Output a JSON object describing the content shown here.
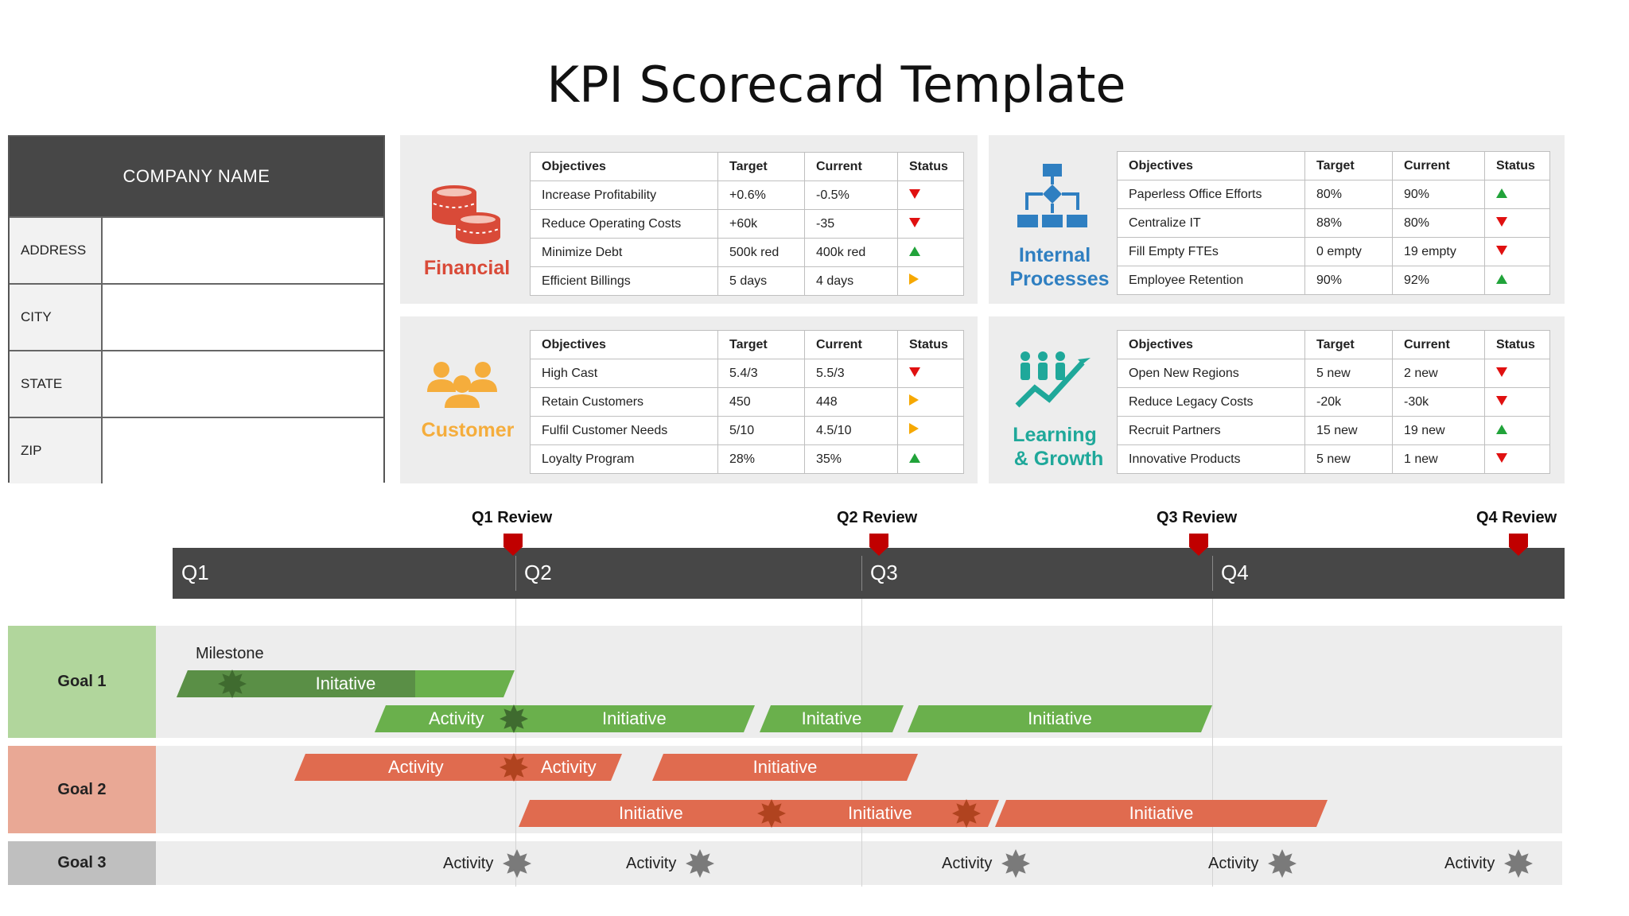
{
  "title": "KPI Scorecard Template",
  "company": {
    "header": "COMPANY NAME",
    "rows": [
      {
        "label": "ADDRESS",
        "value": ""
      },
      {
        "label": "CITY",
        "value": ""
      },
      {
        "label": "STATE",
        "value": ""
      },
      {
        "label": "ZIP",
        "value": ""
      }
    ]
  },
  "table_headers": {
    "objectives": "Objectives",
    "target": "Target",
    "current": "Current",
    "status": "Status"
  },
  "panels": {
    "financial": {
      "label": "Financial",
      "icon": "coins-icon",
      "color": "#d94a38",
      "rows": [
        {
          "objective": "Increase Profitability",
          "target": "+0.6%",
          "current": "-0.5%",
          "status": "down"
        },
        {
          "objective": "Reduce Operating Costs",
          "target": "+60k",
          "current": "-35",
          "status": "down"
        },
        {
          "objective": "Minimize Debt",
          "target": "500k red",
          "current": "400k red",
          "status": "up"
        },
        {
          "objective": "Efficient Billings",
          "target": "5 days",
          "current": "4 days",
          "status": "right"
        }
      ]
    },
    "internal": {
      "label_line1": "Internal",
      "label_line2": "Processes",
      "icon": "process-flow-icon",
      "color": "#2f7fc1",
      "rows": [
        {
          "objective": "Paperless Office Efforts",
          "target": "80%",
          "current": "90%",
          "status": "up"
        },
        {
          "objective": "Centralize IT",
          "target": "88%",
          "current": "80%",
          "status": "down"
        },
        {
          "objective": "Fill Empty FTEs",
          "target": "0 empty",
          "current": "19 empty",
          "status": "down"
        },
        {
          "objective": "Employee Retention",
          "target": "90%",
          "current": "92%",
          "status": "up"
        }
      ]
    },
    "customer": {
      "label": "Customer",
      "icon": "people-icon",
      "color": "#f5ad3c",
      "rows": [
        {
          "objective": "High Cast",
          "target": "5.4/3",
          "current": "5.5/3",
          "status": "down"
        },
        {
          "objective": "Retain Customers",
          "target": "450",
          "current": "448",
          "status": "right"
        },
        {
          "objective": "Fulfil Customer Needs",
          "target": "5/10",
          "current": "4.5/10",
          "status": "right"
        },
        {
          "objective": "Loyalty Program",
          "target": "28%",
          "current": "35%",
          "status": "up"
        }
      ]
    },
    "learning": {
      "label_line1": "Learning",
      "label_line2": "& Growth",
      "icon": "growth-team-icon",
      "color": "#1fa89a",
      "rows": [
        {
          "objective": "Open New Regions",
          "target": "5 new",
          "current": "2 new",
          "status": "down"
        },
        {
          "objective": "Reduce Legacy Costs",
          "target": "-20k",
          "current": "-30k",
          "status": "down"
        },
        {
          "objective": "Recruit Partners",
          "target": "15 new",
          "current": "19 new",
          "status": "up"
        },
        {
          "objective": "Innovative Products",
          "target": "5 new",
          "current": "1 new",
          "status": "down"
        }
      ]
    }
  },
  "timeline": {
    "reviews": [
      "Q1 Review",
      "Q2 Review",
      "Q3 Review",
      "Q4 Review"
    ],
    "quarters": [
      "Q1",
      "Q2",
      "Q3",
      "Q4"
    ],
    "goals": [
      "Goal 1",
      "Goal 2",
      "Goal 3"
    ],
    "goal_colors": {
      "goal1": "#b1d69c",
      "goal2": "#e9a895",
      "goal3": "#bfbfbf"
    },
    "milestone_label": "Milestone",
    "goal1": {
      "bar1": "Initative",
      "bar2_activity": "Activity",
      "bar2_initiative": "Initiative",
      "bar3": "Initative",
      "bar4": "Initiative"
    },
    "goal2": {
      "bar1_a": "Activity",
      "bar1_b": "Activity",
      "bar2": "Initiative",
      "bar3_a": "Initiative",
      "bar3_b": "Initiative",
      "bar3_c": "Initiative"
    },
    "goal3": {
      "activities": [
        "Activity",
        "Activity",
        "Activity",
        "Activity",
        "Activity"
      ]
    }
  }
}
